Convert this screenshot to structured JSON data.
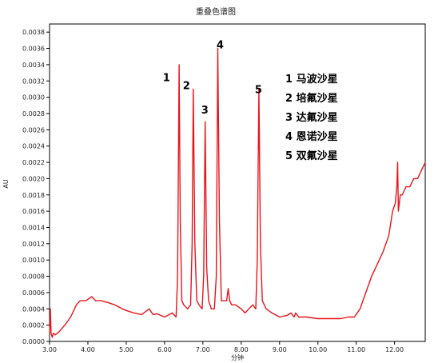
{
  "chart_data": {
    "type": "line",
    "title": "重叠色谱图",
    "xlabel": "分钟",
    "ylabel": "AU",
    "xlim": [
      3.0,
      12.8
    ],
    "ylim": [
      0.0,
      0.0039
    ],
    "x_ticks": [
      "3.00",
      "4.00",
      "5.00",
      "6.00",
      "7.00",
      "8.00",
      "9.00",
      "10.00",
      "11.00",
      "12.00"
    ],
    "y_ticks": [
      "0.0000",
      "0.0002",
      "0.0004",
      "0.0006",
      "0.0008",
      "0.0010",
      "0.0012",
      "0.0014",
      "0.0016",
      "0.0018",
      "0.0020",
      "0.0022",
      "0.0024",
      "0.0026",
      "0.0028",
      "0.0030",
      "0.0032",
      "0.0034",
      "0.0036",
      "0.0038"
    ],
    "grid": false,
    "line_color": "#e8141b",
    "series": [
      {
        "x": [
          3.0,
          3.02,
          3.04,
          3.07,
          3.1,
          3.15,
          3.25,
          3.4,
          3.55,
          3.7,
          3.8,
          3.95,
          4.1,
          4.2,
          4.35,
          4.5,
          4.7,
          4.9,
          5.0,
          5.2,
          5.4,
          5.6,
          5.7,
          5.8,
          6.0,
          6.2,
          6.3,
          6.34,
          6.38,
          6.41,
          6.45,
          6.5,
          6.6,
          6.68,
          6.72,
          6.75,
          6.79,
          6.84,
          6.9,
          6.98,
          7.02,
          7.06,
          7.1,
          7.15,
          7.22,
          7.3,
          7.35,
          7.39,
          7.43,
          7.48,
          7.55,
          7.62,
          7.66,
          7.7,
          7.75,
          7.85,
          8.0,
          8.1,
          8.2,
          8.3,
          8.38,
          8.42,
          8.46,
          8.5,
          8.55,
          8.65,
          8.8,
          9.0,
          9.2,
          9.3,
          9.38,
          9.42,
          9.5,
          9.7,
          10.0,
          10.3,
          10.6,
          10.8,
          10.95,
          11.1,
          11.25,
          11.4,
          11.55,
          11.7,
          11.85,
          11.95,
          12.02,
          12.06,
          12.08,
          12.1,
          12.15,
          12.2,
          12.3,
          12.4,
          12.5,
          12.6,
          12.7,
          12.8
        ],
        "y": [
          0.0001,
          0.0004,
          0.0001,
          5e-05,
          0.0001,
          8e-05,
          0.00012,
          0.0002,
          0.0003,
          0.00045,
          0.0005,
          0.0005,
          0.00055,
          0.0005,
          0.0005,
          0.00048,
          0.00045,
          0.0004,
          0.00038,
          0.00035,
          0.00033,
          0.0004,
          0.00033,
          0.00034,
          0.0003,
          0.00035,
          0.0003,
          0.0008,
          0.0034,
          0.0015,
          0.0005,
          0.00045,
          0.0004,
          0.00045,
          0.0012,
          0.0031,
          0.0012,
          0.0005,
          0.00045,
          0.0004,
          0.0008,
          0.0027,
          0.0009,
          0.0005,
          0.0004,
          0.0004,
          0.0008,
          0.0036,
          0.0015,
          0.0005,
          0.0005,
          0.0005,
          0.00065,
          0.0005,
          0.00045,
          0.00045,
          0.0004,
          0.00035,
          0.0004,
          0.00045,
          0.0004,
          0.001,
          0.0031,
          0.0012,
          0.0005,
          0.0004,
          0.00035,
          0.0003,
          0.00032,
          0.00035,
          0.0003,
          0.00035,
          0.0003,
          0.0003,
          0.00028,
          0.00028,
          0.00028,
          0.0003,
          0.0003,
          0.0004,
          0.0006,
          0.0008,
          0.00095,
          0.0011,
          0.0013,
          0.0016,
          0.0017,
          0.0019,
          0.0022,
          0.0016,
          0.0018,
          0.0018,
          0.0019,
          0.0019,
          0.002,
          0.002,
          0.0021,
          0.0022
        ]
      }
    ],
    "peak_labels": [
      {
        "label": "1",
        "x": 6.05,
        "y": 0.0032
      },
      {
        "label": "2",
        "x": 6.57,
        "y": 0.0031
      },
      {
        "label": "3",
        "x": 7.05,
        "y": 0.0028
      },
      {
        "label": "4",
        "x": 7.45,
        "y": 0.0036
      },
      {
        "label": "5",
        "x": 8.45,
        "y": 0.00305
      }
    ],
    "legend_entries": [
      "1 马波沙星",
      "2 培氟沙星",
      "3 达氟沙星",
      "4 恩诺沙星",
      "5 双氟沙星"
    ]
  }
}
